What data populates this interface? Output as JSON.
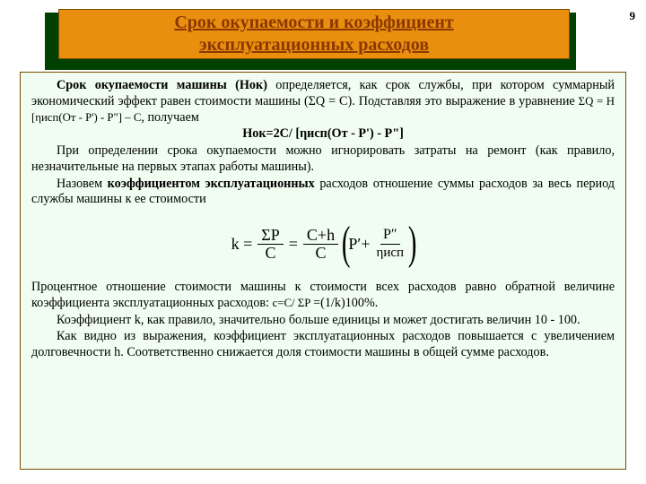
{
  "page_number": "9",
  "header": {
    "title_line1": "Срок окупаемости и коэффициент",
    "title_line2": "эксплуатационных расходов",
    "back_color": "#004000",
    "front_color": "#ea8e0f",
    "title_color": "#8a3800",
    "border_color": "#7a4b00"
  },
  "body": {
    "background": "#f0fdf0",
    "font_size_pt": 11,
    "paragraphs": {
      "p1_a": "Срок окупаемости машины (Нок)",
      "p1_b": " определяется, как срок службы, при котором суммарный экономический эффект равен стоимости машины (ΣQ = C). Подставляя это выражение в уравнение ",
      "p1_eq": "ΣQ = H [ηисп(От - Р') - Р\"] – C",
      "p1_c": ", получаем",
      "f1": "Нок=2C/ [ηисп(От - Р') - Р\"]",
      "p2": "При определении срока окупаемости можно игнорировать затраты на ремонт (как правило, незначительные на первых этапах работы машины).",
      "p3_a": "Назовем ",
      "p3_b": "коэффициентом эксплуатационных",
      "p3_c": " расходов отношение суммы расходов за весь период службы машины к ее стоимости",
      "formula": {
        "k_label": "k =",
        "frac1_num": "ΣP",
        "frac1_den": "C",
        "eq2": "=",
        "frac2_num": "C+h",
        "frac2_den": "C",
        "paren_p1": "P′+",
        "inner_num": "P″",
        "inner_den": "ηисп"
      },
      "p4_a": "Процентное отношение стоимости машины к стоимости всех расходов равно обратной величине коэффициента эксплуатационных расходов: ",
      "p4_eq": "c=C/ ΣP ",
      "p4_b": "=(1/k)100%.",
      "p5": "Коэффициент k, как правило, значительно больше единицы и может достигать величин 10 - 100.",
      "p6": "Как видно из выражения, коэффициент эксплуатационных расходов повышается с увеличением долговечности h. Соответственно снижается доля стоимости машины в общей сумме расходов."
    }
  }
}
